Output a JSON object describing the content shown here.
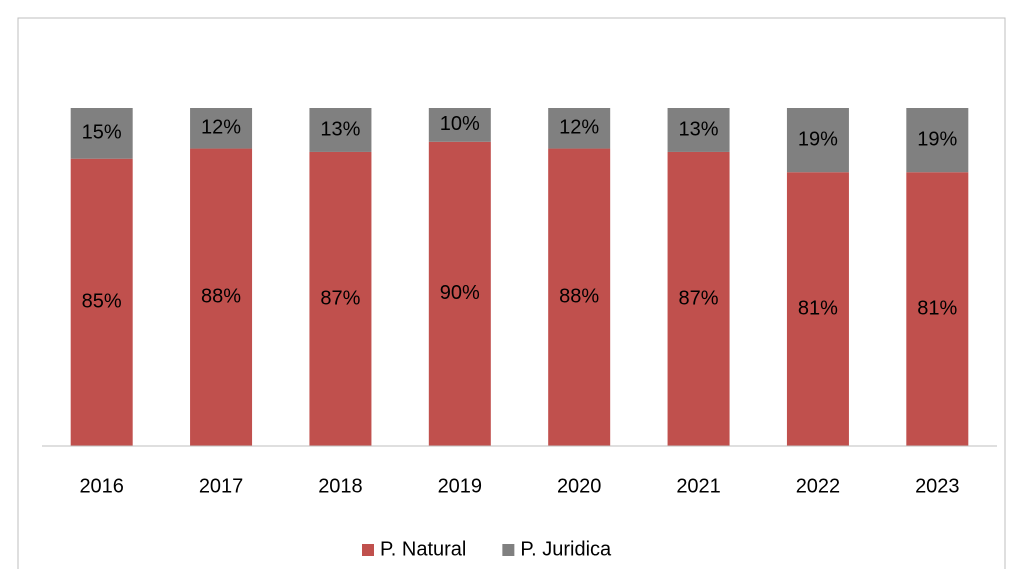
{
  "chart_data": {
    "type": "stacked_bar",
    "categories": [
      "2016",
      "2017",
      "2018",
      "2019",
      "2020",
      "2021",
      "2022",
      "2023"
    ],
    "series": [
      {
        "name": "P. Natural",
        "color": "#c0504d",
        "values": [
          85,
          88,
          87,
          90,
          88,
          87,
          81,
          81
        ],
        "value_labels": [
          "85%",
          "88%",
          "87%",
          "90%",
          "88%",
          "87%",
          "81%",
          "81%"
        ]
      },
      {
        "name": "P. Juridica",
        "color": "#808080",
        "values": [
          15,
          12,
          13,
          10,
          12,
          13,
          19,
          19
        ],
        "value_labels": [
          "15%",
          "12%",
          "13%",
          "10%",
          "12%",
          "13%",
          "19%",
          "19%"
        ]
      }
    ],
    "ylim": [
      0,
      100
    ],
    "legend": "bottom"
  }
}
